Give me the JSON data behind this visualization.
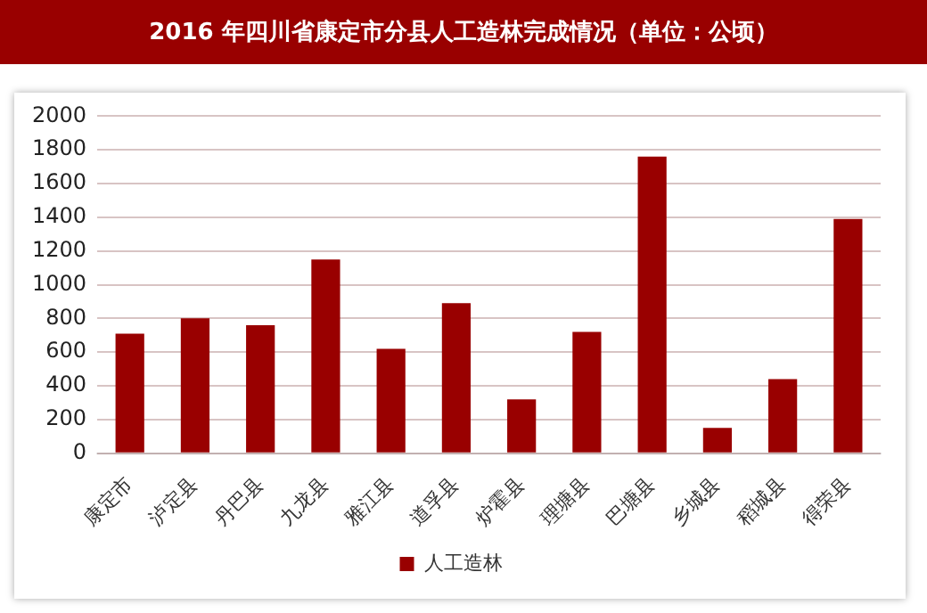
{
  "chart_data": {
    "type": "bar",
    "title": "2016 年四川省康定市分县人工造林完成情况（单位：公顷）",
    "categories": [
      "康定市",
      "泸定县",
      "丹巴县",
      "九龙县",
      "雅江县",
      "道孚县",
      "炉霍县",
      "理塘县",
      "巴塘县",
      "乡城县",
      "稻城县",
      "得荣县"
    ],
    "series": [
      {
        "name": "人工造林",
        "color": "#990000",
        "values": [
          710,
          800,
          760,
          1150,
          620,
          890,
          320,
          720,
          1760,
          150,
          440,
          1390
        ]
      }
    ],
    "ylim": [
      0,
      2000
    ],
    "yticks": [
      0,
      200,
      400,
      600,
      800,
      1000,
      1200,
      1400,
      1600,
      1800,
      2000
    ],
    "grid": "y",
    "legend": "bottom"
  }
}
